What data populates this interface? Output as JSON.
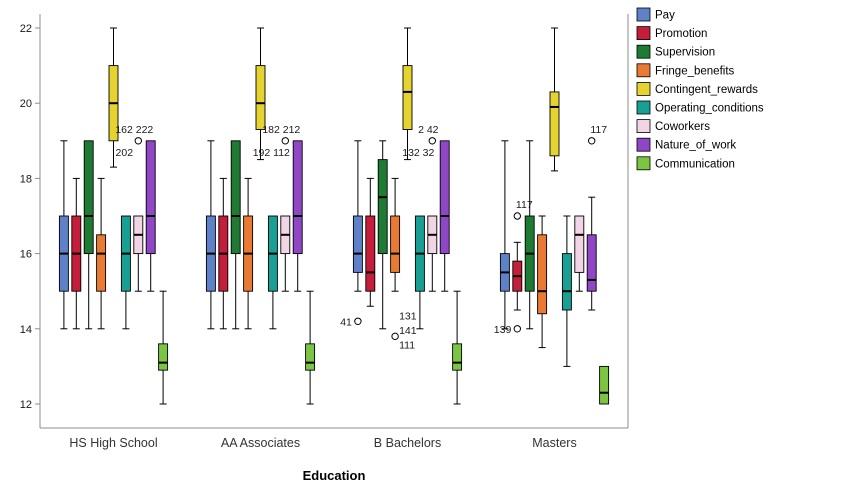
{
  "chart_data": {
    "type": "boxplot",
    "title": "",
    "xlabel": "Education",
    "ylabel": "",
    "ylim": [
      12,
      22
    ],
    "yticks": [
      12,
      14,
      16,
      18,
      20,
      22
    ],
    "grid": false,
    "legend_position": "top-right",
    "categories": [
      "HS High School",
      "AA Associates",
      "B Bachelors",
      "Masters"
    ],
    "series": [
      {
        "name": "Pay",
        "color": "#5f81c7",
        "boxes": [
          {
            "low": 14,
            "q1": 15,
            "median": 16,
            "q3": 17,
            "high": 19
          },
          {
            "low": 14,
            "q1": 15,
            "median": 16,
            "q3": 17,
            "high": 19
          },
          {
            "low": 15,
            "q1": 15.5,
            "median": 16,
            "q3": 17,
            "high": 19,
            "outliers": [
              {
                "value": 14.2,
                "labels": [
                  "41"
                ],
                "label_pos": "left"
              }
            ]
          },
          {
            "low": 14,
            "q1": 15,
            "median": 15.5,
            "q3": 16,
            "high": 19
          }
        ]
      },
      {
        "name": "Promotion",
        "color": "#c41e3a",
        "boxes": [
          {
            "low": 14,
            "q1": 15,
            "median": 16,
            "q3": 17,
            "high": 18
          },
          {
            "low": 14,
            "q1": 15,
            "median": 16,
            "q3": 17,
            "high": 18
          },
          {
            "low": 14.6,
            "q1": 15,
            "median": 15.5,
            "q3": 17,
            "high": 18
          },
          {
            "low": 14.5,
            "q1": 15,
            "median": 15.4,
            "q3": 15.8,
            "high": 16.3,
            "outliers": [
              {
                "value": 17,
                "labels": [
                  "117"
                ],
                "label_pos": "above"
              },
              {
                "value": 14,
                "labels": [
                  "139"
                ],
                "label_pos": "left"
              }
            ]
          }
        ]
      },
      {
        "name": "Supervision",
        "color": "#1f7a33",
        "boxes": [
          {
            "low": 14,
            "q1": 16,
            "median": 17,
            "q3": 19,
            "high": 19
          },
          {
            "low": 14,
            "q1": 16,
            "median": 17,
            "q3": 19,
            "high": 19
          },
          {
            "low": 14,
            "q1": 16,
            "median": 17.5,
            "q3": 18.5,
            "high": 19
          },
          {
            "low": 14,
            "q1": 15,
            "median": 16,
            "q3": 17,
            "high": 19
          }
        ]
      },
      {
        "name": "Fringe_benefits",
        "color": "#e87a33",
        "boxes": [
          {
            "low": 14,
            "q1": 15,
            "median": 16,
            "q3": 16.5,
            "high": 18
          },
          {
            "low": 14,
            "q1": 15,
            "median": 16,
            "q3": 17,
            "high": 18
          },
          {
            "low": 15,
            "q1": 15.5,
            "median": 16,
            "q3": 17,
            "high": 18,
            "outliers": [
              {
                "value": 13.8,
                "labels": [
                  "131",
                  "141",
                  "111"
                ],
                "label_pos": "right-stack"
              }
            ]
          },
          {
            "low": 13.5,
            "q1": 14.4,
            "median": 15,
            "q3": 16.5,
            "high": 17
          }
        ]
      },
      {
        "name": "Contingent_rewards",
        "color": "#e5d32f",
        "boxes": [
          {
            "low": 18.3,
            "q1": 19,
            "median": 20,
            "q3": 21,
            "high": 22
          },
          {
            "low": 18.5,
            "q1": 19.3,
            "median": 20,
            "q3": 21,
            "high": 22
          },
          {
            "low": 18.5,
            "q1": 19.3,
            "median": 20.3,
            "q3": 21,
            "high": 22
          },
          {
            "low": 18.2,
            "q1": 18.6,
            "median": 19.9,
            "q3": 20.3,
            "high": 22
          }
        ]
      },
      {
        "name": "Operating_conditions",
        "color": "#17a093",
        "boxes": [
          {
            "low": 14,
            "q1": 15,
            "median": 16,
            "q3": 17,
            "high": 17
          },
          {
            "low": 14,
            "q1": 15,
            "median": 16,
            "q3": 17,
            "high": 17
          },
          {
            "low": 14,
            "q1": 15,
            "median": 16,
            "q3": 17,
            "high": 17
          },
          {
            "low": 13,
            "q1": 14.5,
            "median": 15,
            "q3": 16,
            "high": 17
          }
        ]
      },
      {
        "name": "Coworkers",
        "color": "#f2d5e5",
        "boxes": [
          {
            "low": 15,
            "q1": 16,
            "median": 16.5,
            "q3": 17,
            "high": 17,
            "outliers": [
              {
                "value": 19,
                "labels": [
                  "162 222",
                  "202"
                ],
                "label_pos": "left2"
              }
            ]
          },
          {
            "low": 15,
            "q1": 16,
            "median": 16.5,
            "q3": 17,
            "high": 17,
            "outliers": [
              {
                "value": 19,
                "labels": [
                  "182 212",
                  "192 112"
                ],
                "label_pos": "left2"
              }
            ]
          },
          {
            "low": 15,
            "q1": 16,
            "median": 16.5,
            "q3": 17,
            "high": 17,
            "outliers": [
              {
                "value": 19,
                "labels": [
                  "2 42",
                  "132 32"
                ],
                "label_pos": "left2"
              }
            ]
          },
          {
            "low": 15,
            "q1": 15.5,
            "median": 16.5,
            "q3": 17,
            "high": 17
          }
        ]
      },
      {
        "name": "Nature_of_work",
        "color": "#8f47c6",
        "boxes": [
          {
            "low": 15,
            "q1": 16,
            "median": 17,
            "q3": 19,
            "high": 19
          },
          {
            "low": 15,
            "q1": 16,
            "median": 17,
            "q3": 19,
            "high": 19
          },
          {
            "low": 15,
            "q1": 16,
            "median": 17,
            "q3": 19,
            "high": 19
          },
          {
            "low": 14.5,
            "q1": 15,
            "median": 15.3,
            "q3": 16.5,
            "high": 17.5,
            "outliers": [
              {
                "value": 19,
                "labels": [
                  "117"
                ],
                "label_pos": "above"
              }
            ]
          }
        ]
      },
      {
        "name": "Communication",
        "color": "#7cc543",
        "boxes": [
          {
            "low": 12,
            "q1": 12.9,
            "median": 13.1,
            "q3": 13.6,
            "high": 15
          },
          {
            "low": 12,
            "q1": 12.9,
            "median": 13.1,
            "q3": 13.6,
            "high": 15
          },
          {
            "low": 12,
            "q1": 12.9,
            "median": 13.1,
            "q3": 13.6,
            "high": 15
          },
          {
            "low": 12,
            "q1": 12,
            "median": 12.3,
            "q3": 13,
            "high": 13
          }
        ]
      }
    ]
  }
}
